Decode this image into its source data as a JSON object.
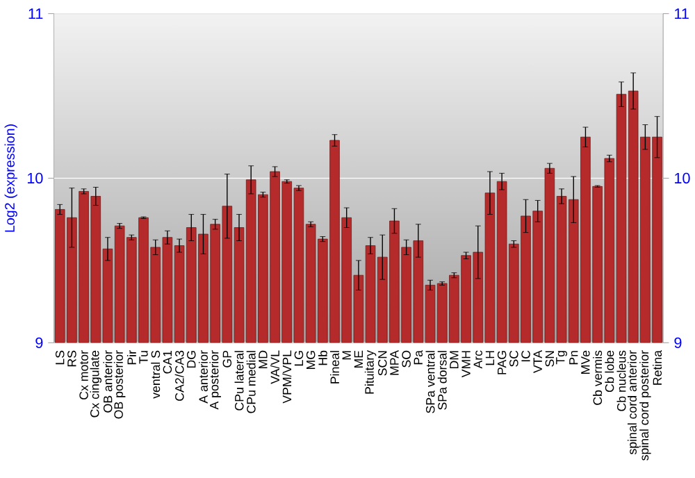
{
  "chart_data": {
    "type": "bar",
    "ylabel": "Log2 (expression)",
    "categories": [
      "LS",
      "RS",
      "Cx motor",
      "Cx cingulate",
      "OB anterior",
      "OB posterior",
      "Pir",
      "Tu",
      "ventral S",
      "CA1",
      "CA2/CA3",
      "DG",
      "A anterior",
      "A posterior",
      "GP",
      "CPu lateral",
      "CPu medial",
      "MD",
      "VA/VL",
      "VPM/VPL",
      "LG",
      "MG",
      "Hb",
      "Pineal",
      "M",
      "ME",
      "Pituitary",
      "SCN",
      "MPA",
      "SO",
      "Pa",
      "SPa ventral",
      "SPa dorsal",
      "DM",
      "VMH",
      "Arc",
      "LH",
      "PAG",
      "SC",
      "IC",
      "VTA",
      "SN",
      "Tg",
      "Pn",
      "MVe",
      "Cb vermis",
      "Cb lobe",
      "Cb nucleus",
      "spinal cord anterior",
      "spinal cord posterior",
      "Retina"
    ],
    "values": [
      9.81,
      9.76,
      9.92,
      9.89,
      9.57,
      9.71,
      9.64,
      9.76,
      9.58,
      9.64,
      9.59,
      9.7,
      9.66,
      9.72,
      9.83,
      9.7,
      9.99,
      9.9,
      10.04,
      9.98,
      9.94,
      9.72,
      9.63,
      10.23,
      9.76,
      9.41,
      9.59,
      9.52,
      9.74,
      9.58,
      9.62,
      9.35,
      9.36,
      9.41,
      9.53,
      9.55,
      9.91,
      9.98,
      9.6,
      9.77,
      9.8,
      10.06,
      9.89,
      9.87,
      10.25,
      9.95,
      10.12,
      10.51,
      10.53,
      10.25,
      10.25
    ],
    "errors": [
      0.03,
      0.18,
      0.015,
      0.055,
      0.07,
      0.015,
      0.015,
      0.005,
      0.045,
      0.04,
      0.04,
      0.08,
      0.12,
      0.03,
      0.195,
      0.08,
      0.085,
      0.015,
      0.03,
      0.01,
      0.015,
      0.015,
      0.015,
      0.035,
      0.06,
      0.09,
      0.05,
      0.135,
      0.075,
      0.045,
      0.1,
      0.03,
      0.01,
      0.015,
      0.02,
      0.16,
      0.13,
      0.05,
      0.02,
      0.1,
      0.065,
      0.03,
      0.045,
      0.14,
      0.06,
      0.005,
      0.02,
      0.075,
      0.11,
      0.075,
      0.125
    ],
    "color": "#b52a2a",
    "ylim": [
      9,
      11
    ],
    "yticks": [
      9,
      10,
      11
    ],
    "y2lim": [
      9,
      11
    ],
    "y2ticks": [
      9,
      10,
      11
    ],
    "grid": "y"
  }
}
